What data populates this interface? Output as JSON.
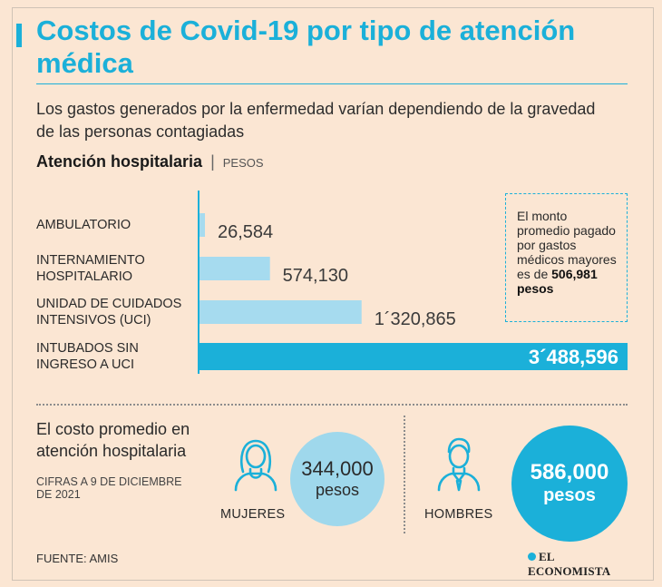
{
  "header": {
    "title": "Costos de Covid-19 por tipo de atención médica",
    "subtitle": "Los gastos generados por la enfermedad varían dependiendo de la gravedad de las personas contagiadas",
    "section_title": "Atención hospitalaria",
    "section_separator": "|",
    "section_unit": "PESOS"
  },
  "chart_data": {
    "type": "bar",
    "orientation": "horizontal",
    "title": "Atención hospitalaria",
    "unit": "PESOS",
    "categories": [
      "AMBULATORIO",
      "INTERNAMIENTO HOSPITALARIO",
      "UNIDAD DE CUIDADOS INTENSIVOS (UCI)",
      "INTUBADOS SIN INGRESO A UCI"
    ],
    "category_lines": [
      [
        "AMBULATORIO"
      ],
      [
        "INTERNAMIENTO",
        "HOSPITALARIO"
      ],
      [
        "UNIDAD DE CUIDADOS",
        "INTENSIVOS (UCI)"
      ],
      [
        "INTUBADOS SIN",
        "INGRESO A UCI"
      ]
    ],
    "values": [
      26584,
      574130,
      1320865,
      3488596
    ],
    "value_labels": [
      "26,584",
      "574,130",
      "1´320,865",
      "3´488,596"
    ],
    "xlim": [
      0,
      3488596
    ],
    "grid": false,
    "highlight_index": 3,
    "colors": {
      "bar": "#a6dbef",
      "highlight": "#1bb0d9",
      "axis": "#1bb0d9"
    }
  },
  "note": {
    "text": "El monto promedio pagado por gastos médicos mayores es de",
    "amount": "506,981 pesos"
  },
  "average": {
    "label": "El costo promedio en atención hospitalaria",
    "date_note": "CIFRAS A 9 DE DICIEMBRE DE 2021",
    "women": {
      "label": "MUJERES",
      "value": "344,000",
      "unit": "pesos",
      "icon": "woman-icon"
    },
    "men": {
      "label": "HOMBRES",
      "value": "586,000",
      "unit": "pesos",
      "icon": "man-icon"
    }
  },
  "footer": {
    "source": "FUENTE: AMIS",
    "brand": "EL ECONOMISTA"
  },
  "colors": {
    "background": "#fbe6d3",
    "accent": "#1bb0d9",
    "light_accent": "#a6dbef"
  }
}
